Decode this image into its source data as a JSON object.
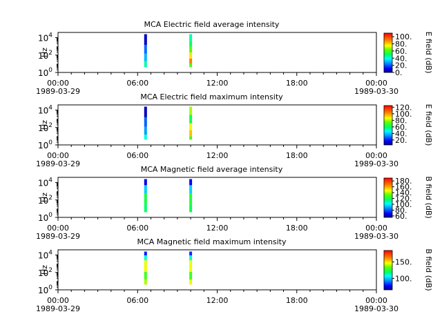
{
  "chart_data": [
    {
      "type": "heatmap",
      "title": "MCA  Electric field average intensity",
      "ylabel": "Hz",
      "y_scale": "log",
      "yticks": [
        {
          "base": "10",
          "exp": "0"
        },
        {
          "base": "10",
          "exp": "2"
        },
        {
          "base": "10",
          "exp": "4"
        }
      ],
      "x_ticks": [
        {
          "time": "00:00",
          "date": "1989-03-29"
        },
        {
          "time": "06:00",
          "date": ""
        },
        {
          "time": "12:00",
          "date": ""
        },
        {
          "time": "18:00",
          "date": ""
        },
        {
          "time": "00:00",
          "date": "1989-03-30"
        }
      ],
      "colorbar": {
        "label": "E field (dB)",
        "ticks": [
          "0.",
          "20.",
          "40.",
          "60.",
          "80.",
          "100."
        ],
        "range": [
          0,
          110
        ]
      },
      "strips": [
        {
          "time_hours": 6.6,
          "segments": [
            {
              "f_lo": 4,
              "f_hi": 20,
              "value": 45
            },
            {
              "f_lo": 20,
              "f_hi": 150,
              "value": 30
            },
            {
              "f_lo": 150,
              "f_hi": 1500,
              "value": 22
            },
            {
              "f_lo": 1500,
              "f_hi": 25000,
              "value": 5
            }
          ]
        },
        {
          "time_hours": 10.0,
          "segments": [
            {
              "f_lo": 4,
              "f_hi": 10,
              "value": 60
            },
            {
              "f_lo": 10,
              "f_hi": 40,
              "value": 90
            },
            {
              "f_lo": 40,
              "f_hi": 200,
              "value": 78
            },
            {
              "f_lo": 200,
              "f_hi": 900,
              "value": 62
            },
            {
              "f_lo": 900,
              "f_hi": 4000,
              "value": 52
            },
            {
              "f_lo": 4000,
              "f_hi": 25000,
              "value": 44
            }
          ]
        }
      ]
    },
    {
      "type": "heatmap",
      "title": "MCA  Electric field maximum intensity",
      "ylabel": "Hz",
      "y_scale": "log",
      "yticks": [
        {
          "base": "10",
          "exp": "0"
        },
        {
          "base": "10",
          "exp": "2"
        },
        {
          "base": "10",
          "exp": "4"
        }
      ],
      "x_ticks": [
        {
          "time": "00:00",
          "date": "1989-03-29"
        },
        {
          "time": "06:00",
          "date": ""
        },
        {
          "time": "12:00",
          "date": ""
        },
        {
          "time": "18:00",
          "date": ""
        },
        {
          "time": "00:00",
          "date": "1989-03-30"
        }
      ],
      "colorbar": {
        "label": "E field (dB)",
        "ticks": [
          "20.",
          "40.",
          "60.",
          "80.",
          "100.",
          "120."
        ],
        "range": [
          5,
          125
        ]
      },
      "strips": [
        {
          "time_hours": 6.6,
          "segments": [
            {
              "f_lo": 4,
              "f_hi": 15,
              "value": 50
            },
            {
              "f_lo": 15,
              "f_hi": 120,
              "value": 35
            },
            {
              "f_lo": 120,
              "f_hi": 1500,
              "value": 28
            },
            {
              "f_lo": 1500,
              "f_hi": 25000,
              "value": 10
            }
          ]
        },
        {
          "time_hours": 10.0,
          "segments": [
            {
              "f_lo": 4,
              "f_hi": 10,
              "value": 70
            },
            {
              "f_lo": 10,
              "f_hi": 50,
              "value": 95
            },
            {
              "f_lo": 50,
              "f_hi": 300,
              "value": 85
            },
            {
              "f_lo": 300,
              "f_hi": 3000,
              "value": 62
            },
            {
              "f_lo": 3000,
              "f_hi": 25000,
              "value": 80
            }
          ]
        }
      ]
    },
    {
      "type": "heatmap",
      "title": "MCA  Magnetic field average intensity",
      "ylabel": "Hz",
      "y_scale": "log",
      "yticks": [
        {
          "base": "10",
          "exp": "0"
        },
        {
          "base": "10",
          "exp": "2"
        },
        {
          "base": "10",
          "exp": "4"
        }
      ],
      "x_ticks": [
        {
          "time": "00:00",
          "date": "1989-03-29"
        },
        {
          "time": "06:00",
          "date": ""
        },
        {
          "time": "12:00",
          "date": ""
        },
        {
          "time": "18:00",
          "date": ""
        },
        {
          "time": "00:00",
          "date": "1989-03-30"
        }
      ],
      "colorbar": {
        "label": "B field (dB)",
        "ticks": [
          "60.",
          "80.",
          "100.",
          "120.",
          "140.",
          "160.",
          "180."
        ],
        "range": [
          55,
          190
        ]
      },
      "strips": [
        {
          "time_hours": 6.6,
          "segments": [
            {
              "f_lo": 4,
              "f_hi": 30,
              "value": 115
            },
            {
              "f_lo": 30,
              "f_hi": 600,
              "value": 120
            },
            {
              "f_lo": 600,
              "f_hi": 5000,
              "value": 95
            },
            {
              "f_lo": 5000,
              "f_hi": 25000,
              "value": 65
            }
          ]
        },
        {
          "time_hours": 10.0,
          "segments": [
            {
              "f_lo": 4,
              "f_hi": 30,
              "value": 118
            },
            {
              "f_lo": 30,
              "f_hi": 600,
              "value": 122
            },
            {
              "f_lo": 600,
              "f_hi": 5000,
              "value": 96
            },
            {
              "f_lo": 5000,
              "f_hi": 25000,
              "value": 68
            }
          ]
        }
      ]
    },
    {
      "type": "heatmap",
      "title": "MCA  Magnetic field maximum intensity",
      "ylabel": "Hz",
      "y_scale": "log",
      "yticks": [
        {
          "base": "10",
          "exp": "0"
        },
        {
          "base": "10",
          "exp": "2"
        },
        {
          "base": "10",
          "exp": "4"
        }
      ],
      "x_ticks": [
        {
          "time": "00:00",
          "date": "1989-03-29"
        },
        {
          "time": "06:00",
          "date": ""
        },
        {
          "time": "12:00",
          "date": ""
        },
        {
          "time": "18:00",
          "date": ""
        },
        {
          "time": "00:00",
          "date": "1989-03-30"
        }
      ],
      "colorbar": {
        "label": "B field (dB)",
        "ticks": [
          "100.",
          "150."
        ],
        "range": [
          65,
          185
        ]
      },
      "strips": [
        {
          "time_hours": 6.6,
          "segments": [
            {
              "f_lo": 4,
              "f_hi": 15,
              "value": 140
            },
            {
              "f_lo": 15,
              "f_hi": 120,
              "value": 130
            },
            {
              "f_lo": 120,
              "f_hi": 2500,
              "value": 145
            },
            {
              "f_lo": 2500,
              "f_hi": 9000,
              "value": 110
            },
            {
              "f_lo": 9000,
              "f_hi": 25000,
              "value": 80
            }
          ]
        },
        {
          "time_hours": 10.0,
          "segments": [
            {
              "f_lo": 4,
              "f_hi": 15,
              "value": 145
            },
            {
              "f_lo": 15,
              "f_hi": 120,
              "value": 130
            },
            {
              "f_lo": 120,
              "f_hi": 2500,
              "value": 145
            },
            {
              "f_lo": 2500,
              "f_hi": 9000,
              "value": 110
            },
            {
              "f_lo": 9000,
              "f_hi": 25000,
              "value": 82
            }
          ]
        }
      ]
    }
  ]
}
